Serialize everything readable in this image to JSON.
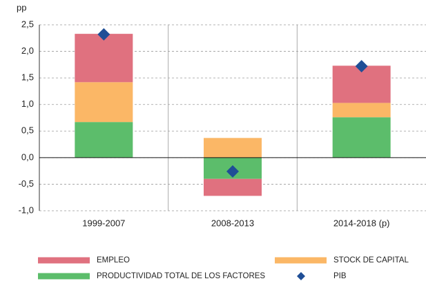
{
  "chart_data": {
    "type": "bar",
    "stacked": true,
    "ylabel": "pp",
    "categories": [
      "1999-2007",
      "2008-2013",
      "2014-2018 (p)"
    ],
    "series": [
      {
        "name": "EMPLEO",
        "color": "#e0717f",
        "values": [
          0.91,
          -0.32,
          0.7
        ]
      },
      {
        "name": "STOCK DE CAPITAL",
        "color": "#fbb766",
        "values": [
          0.75,
          0.37,
          0.27
        ]
      },
      {
        "name": "PRODUCTIVIDAD TOTAL DE LOS FACTORES",
        "color": "#5cbd6b",
        "values": [
          0.67,
          -0.4,
          0.76
        ]
      },
      {
        "name": "PIB",
        "color": "#1f4e96",
        "type": "scatter",
        "marker": "diamond",
        "values": [
          2.32,
          -0.26,
          1.72
        ]
      }
    ],
    "ylim": [
      -1.0,
      2.5
    ],
    "yticks": [
      {
        "value": -1.0,
        "label": "-1,0"
      },
      {
        "value": -0.5,
        "label": "-0,5"
      },
      {
        "value": 0,
        "label": "0,0"
      },
      {
        "value": 0.5,
        "label": "0,5"
      },
      {
        "value": 1.0,
        "label": "1,0"
      },
      {
        "value": 1.5,
        "label": "1,5"
      },
      {
        "value": 2.0,
        "label": "2,0"
      },
      {
        "value": 2.5,
        "label": "2,5"
      }
    ],
    "grid": true
  }
}
